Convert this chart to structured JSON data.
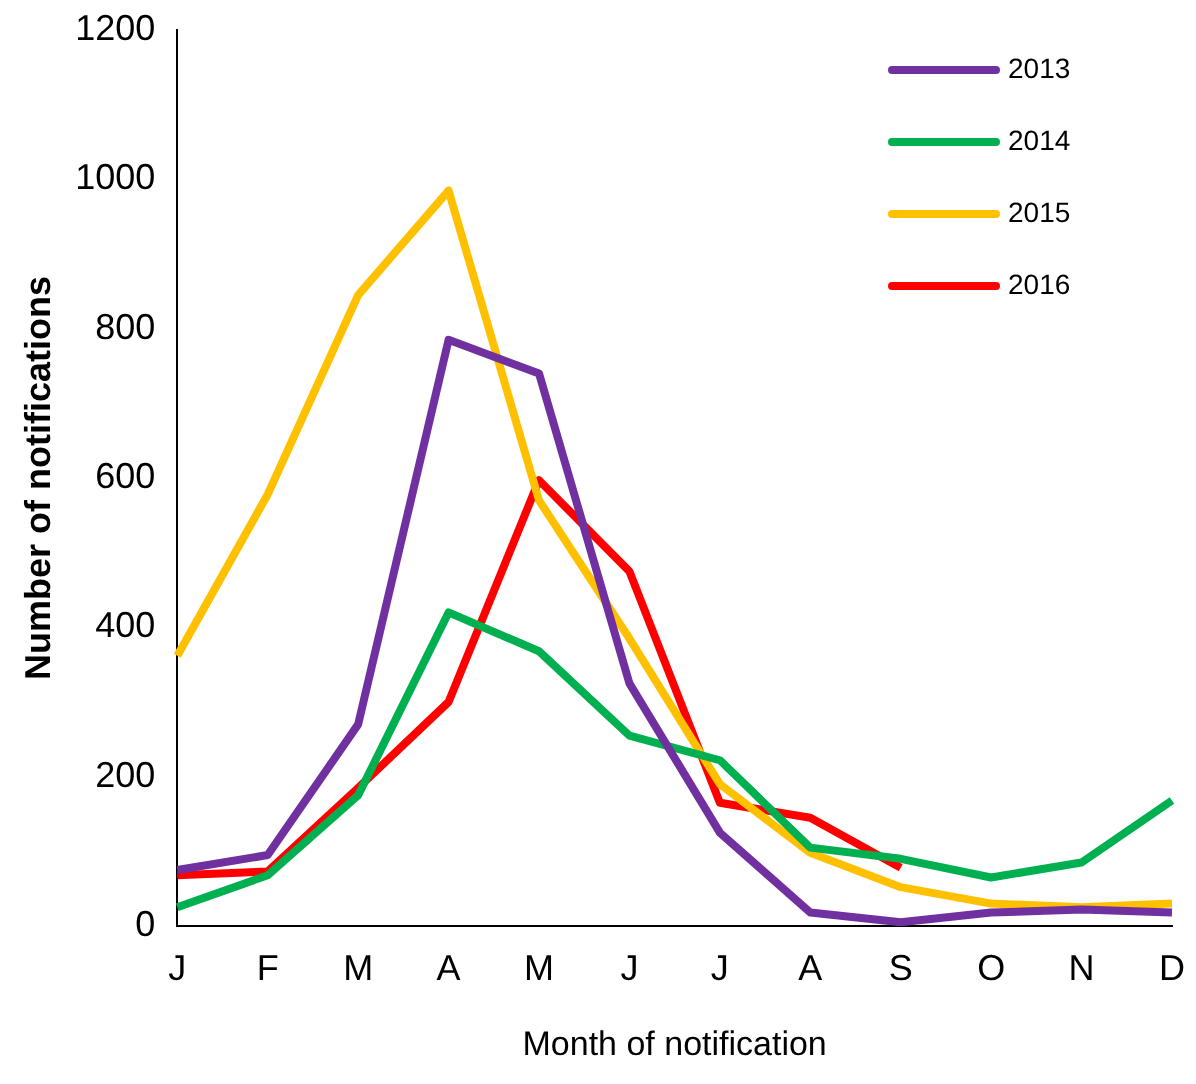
{
  "chart_data": {
    "type": "line",
    "xlabel": "Month of notification",
    "ylabel": "Number of notifications",
    "categories": [
      "J",
      "F",
      "M",
      "A",
      "M",
      "J",
      "J",
      "A",
      "S",
      "O",
      "N",
      "D"
    ],
    "ylim": [
      0,
      1200
    ],
    "yticks": [
      0,
      200,
      400,
      600,
      800,
      1000,
      1200
    ],
    "grid": false,
    "legend": "top right",
    "marker": "none",
    "series": [
      {
        "name": "2013",
        "color": "#7030a0",
        "values": [
          75,
          95,
          270,
          785,
          740,
          325,
          125,
          18,
          5,
          18,
          22,
          18
        ]
      },
      {
        "name": "2014",
        "color": "#00b050",
        "values": [
          25,
          68,
          175,
          420,
          368,
          255,
          222,
          105,
          90,
          65,
          85,
          168
        ]
      },
      {
        "name": "2015",
        "color": "#ffc000",
        "values": [
          362,
          578,
          845,
          985,
          570,
          385,
          190,
          98,
          52,
          30,
          25,
          30
        ]
      },
      {
        "name": "2016",
        "color": "#ff0000",
        "values": [
          68,
          73,
          185,
          300,
          597,
          475,
          165,
          145,
          78,
          null,
          null,
          null
        ]
      }
    ]
  }
}
